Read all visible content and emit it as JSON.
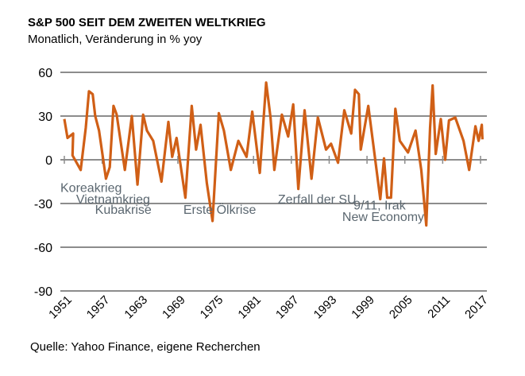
{
  "chart_data": {
    "type": "line",
    "title": "S&P 500 SEIT DEM ZWEITEN WELTKRIEG",
    "subtitle": "Monatlich, Veränderung in % yoy",
    "source": "Quelle: Yahoo Finance, eigene Recherchen",
    "xlabel": "",
    "ylabel": "",
    "xlim": [
      1951,
      2017.3
    ],
    "ylim": [
      -90,
      60
    ],
    "grid": true,
    "y_ticks": [
      60,
      30,
      0,
      -30,
      -60,
      -90
    ],
    "x_ticks": [
      "1951",
      "1957",
      "1963",
      "1969",
      "1975",
      "1981",
      "1987",
      "1993",
      "1999",
      "2005",
      "2011",
      "2017"
    ],
    "color": "#D05F16",
    "annotations": [
      {
        "text": "Koreakrieg",
        "x": 1951,
        "y": -10
      },
      {
        "text": "Vietnamkrieg",
        "x": 1953.5,
        "y": -18
      },
      {
        "text": "Kubakrise",
        "x": 1956.5,
        "y": -25
      },
      {
        "text": "Erste Ölkrise",
        "x": 1970.5,
        "y": -25
      },
      {
        "text": "Zerfall der SU",
        "x": 1985.5,
        "y": -18
      },
      {
        "text": "9/11, Irak",
        "x": 1997.5,
        "y": -22
      },
      {
        "text": "New Economy",
        "x": 1995.7,
        "y": -30
      }
    ],
    "series": [
      {
        "name": "S&P 500 yoy %",
        "x": [
          1951.0,
          1951.5,
          1952.4,
          1952.3,
          1953.6,
          1954.4,
          1954.9,
          1955.5,
          1955.9,
          1956.5,
          1957.6,
          1958.2,
          1958.8,
          1959.3,
          1960.6,
          1961.2,
          1961.7,
          1962.6,
          1963.5,
          1964.1,
          1965.1,
          1966.4,
          1967.5,
          1968.1,
          1968.8,
          1970.2,
          1971.2,
          1971.9,
          1972.6,
          1973.6,
          1974.5,
          1975.5,
          1976.3,
          1977.4,
          1978.6,
          1979.9,
          1980.8,
          1982.0,
          1983.0,
          1983.7,
          1984.3,
          1985.5,
          1986.5,
          1987.3,
          1988.1,
          1989.1,
          1990.2,
          1991.2,
          1992.5,
          1993.3,
          1994.4,
          1995.4,
          1996.5,
          1997.1,
          1997.7,
          1998.0,
          1999.2,
          2000.1,
          2001.1,
          2001.7,
          2002.2,
          2002.8,
          2003.5,
          2004.2,
          2005.5,
          2006.7,
          2007.6,
          2008.4,
          2009.0,
          2009.4,
          2009.9,
          2010.7,
          2011.4,
          2012.0,
          2013.0,
          2014.3,
          2015.2,
          2016.2,
          2016.7,
          2017.2,
          2017.3
        ],
        "y": [
          28,
          15,
          18,
          3,
          -7,
          22,
          47,
          45,
          30,
          20,
          -13,
          -5,
          37,
          31,
          -7,
          13,
          30,
          -17,
          31,
          20,
          13,
          -15,
          26,
          2,
          15,
          -26,
          37,
          7,
          24,
          -16,
          -42,
          32,
          20,
          -7,
          13,
          2,
          33,
          -9,
          53,
          29,
          -7,
          31,
          16,
          38,
          -20,
          34,
          -13,
          29,
          7,
          11,
          -2,
          34,
          18,
          48,
          45,
          7,
          37,
          7,
          -27,
          1,
          -26,
          -26,
          35,
          13,
          5,
          20,
          -7,
          -45,
          22,
          51,
          4,
          28,
          0,
          27,
          29,
          13,
          -7,
          23,
          13,
          24,
          14
        ]
      }
    ]
  }
}
